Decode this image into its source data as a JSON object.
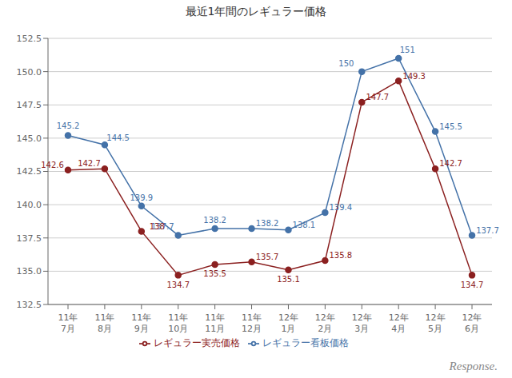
{
  "chart_data": {
    "type": "line",
    "title": "最近1年間のレギュラー価格",
    "categories": [
      "11年\n7月",
      "11年\n8月",
      "11年\n9月",
      "11年\n10月",
      "11年\n11月",
      "11年\n12月",
      "12年\n1月",
      "12年\n2月",
      "12年\n3月",
      "12年\n4月",
      "12年\n5月",
      "12年\n6月"
    ],
    "series": [
      {
        "name": "レギュラー看板価格",
        "color": "#4472a8",
        "marker": "circle",
        "line_style": "solid",
        "values": [
          145.2,
          144.5,
          139.9,
          137.7,
          138.2,
          138.2,
          138.1,
          139.4,
          150.0,
          151.0,
          145.5,
          137.7
        ]
      },
      {
        "name": "レギュラー実売価格",
        "color": "#8b2020",
        "marker": "circle",
        "line_style": "solid",
        "values": [
          142.6,
          142.7,
          138.0,
          134.7,
          135.5,
          135.7,
          135.1,
          135.8,
          147.7,
          149.3,
          142.7,
          134.7
        ]
      }
    ],
    "ylim": [
      132.5,
      152.5
    ],
    "yticks": [
      132.5,
      {
        "value": 135,
        "label": "135.0"
      },
      137.5,
      {
        "value": 140,
        "label": "140.0"
      },
      142.5,
      {
        "value": 145,
        "label": "145.0"
      },
      147.5,
      {
        "value": 150,
        "label": "150.0"
      },
      152.5
    ],
    "grid": true,
    "legend": "bottom",
    "data_labels": true,
    "annotations": [
      "Response."
    ]
  }
}
